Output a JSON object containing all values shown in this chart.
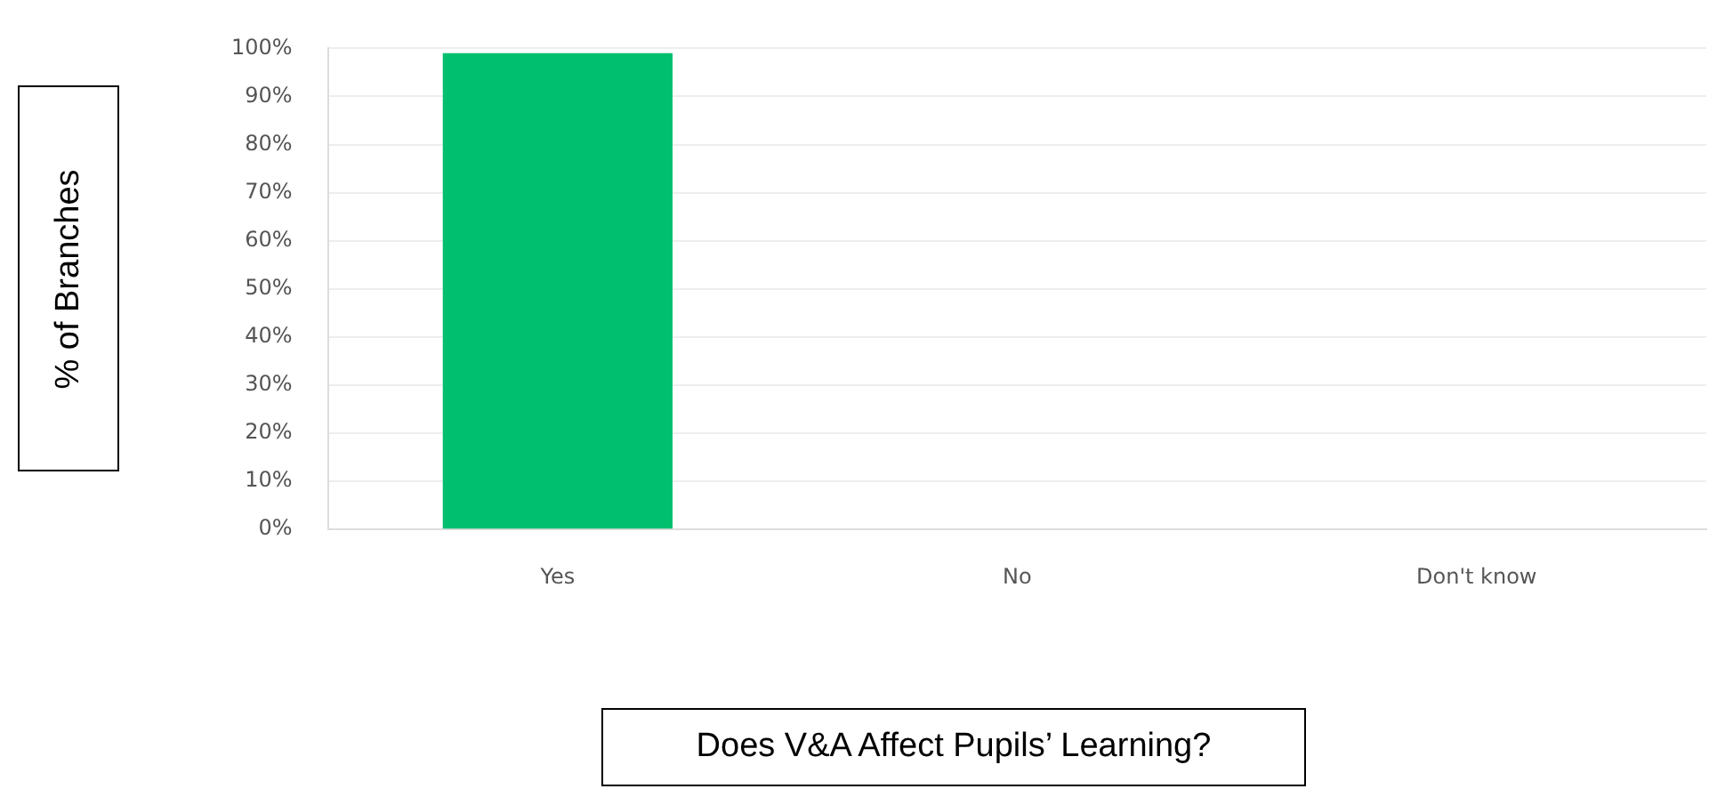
{
  "chart_data": {
    "type": "bar",
    "xlabel": "Does V&A Affect Pupils’ Learning?",
    "ylabel": "% of Branches",
    "categories": [
      "Yes",
      "No",
      "Don't know"
    ],
    "values": [
      99,
      0,
      0
    ],
    "color": "#00bf6f",
    "ylim": [
      0,
      100
    ],
    "yticks": [
      {
        "value": 0,
        "label": "0%"
      },
      {
        "value": 10,
        "label": "10%"
      },
      {
        "value": 20,
        "label": "20%"
      },
      {
        "value": 30,
        "label": "30%"
      },
      {
        "value": 40,
        "label": "40%"
      },
      {
        "value": 50,
        "label": "50%"
      },
      {
        "value": 60,
        "label": "60%"
      },
      {
        "value": 70,
        "label": "70%"
      },
      {
        "value": 80,
        "label": "80%"
      },
      {
        "value": 90,
        "label": "90%"
      },
      {
        "value": 100,
        "label": "100%"
      }
    ],
    "grid": "y",
    "legend": false
  }
}
